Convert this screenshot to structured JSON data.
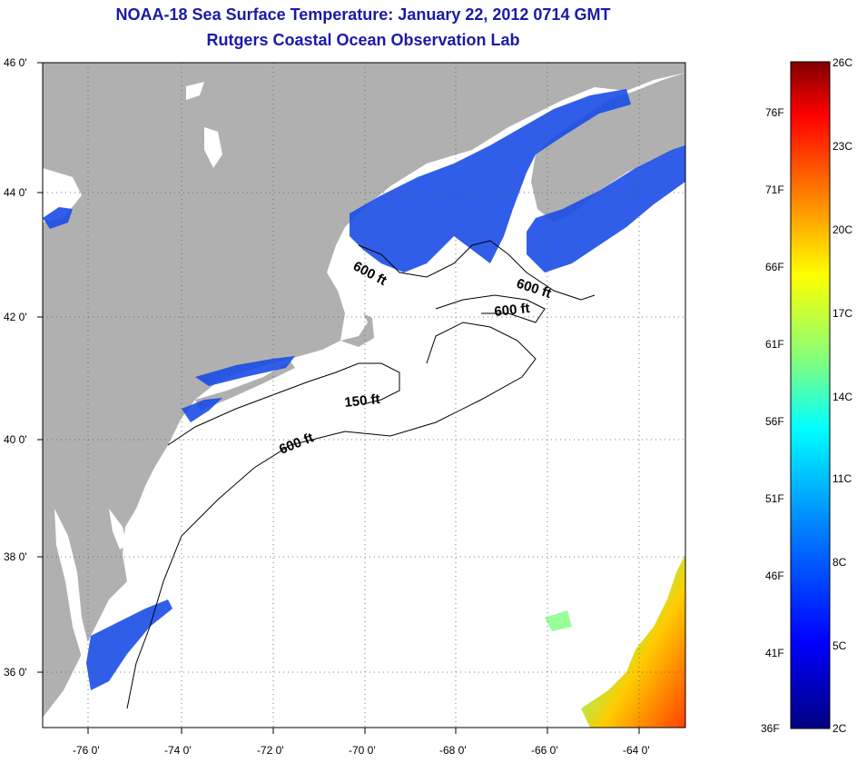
{
  "title": {
    "line1": "NOAA-18 Sea Surface Temperature:  January 22, 2012 0714 GMT",
    "line2": "Rutgers Coastal Ocean Observation Lab"
  },
  "map": {
    "lat_labels": [
      "46 0'",
      "44 0'",
      "42 0'",
      "40 0'",
      "38 0'",
      "36 0'"
    ],
    "lat_values": [
      46,
      44,
      42,
      40,
      38,
      36
    ],
    "lon_labels": [
      "-76 0'",
      "-74 0'",
      "-72 0'",
      "-70 0'",
      "-68 0'",
      "-66 0'",
      "-64 0'"
    ],
    "lon_values": [
      -76,
      -74,
      -72,
      -70,
      -68,
      -66,
      -64
    ],
    "lon_range": [
      -77,
      -62.8
    ],
    "lat_range": [
      35,
      46
    ],
    "colors": {
      "land": "#b0b0b0",
      "water_no_data": "#ffffff",
      "cold_water": "#1a4de6",
      "bathymetry_line": "#000000",
      "grid": "#555555"
    },
    "contour_labels": [
      {
        "text": "600 ft"
      },
      {
        "text": "600 ft"
      },
      {
        "text": "600 ft"
      },
      {
        "text": "150 ft"
      },
      {
        "text": "600 ft"
      }
    ]
  },
  "colorbar": {
    "celsius_labels": [
      "26C",
      "23C",
      "20C",
      "17C",
      "14C",
      "11C",
      "8C",
      "5C",
      "2C"
    ],
    "fahrenheit_labels": [
      "76F",
      "71F",
      "66F",
      "61F",
      "56F",
      "51F",
      "46F",
      "41F",
      "36F"
    ],
    "gradient_colors": [
      "#800000",
      "#ff0000",
      "#ff8000",
      "#ffff00",
      "#80ff80",
      "#00ffff",
      "#0080ff",
      "#0000ff",
      "#000080"
    ]
  }
}
